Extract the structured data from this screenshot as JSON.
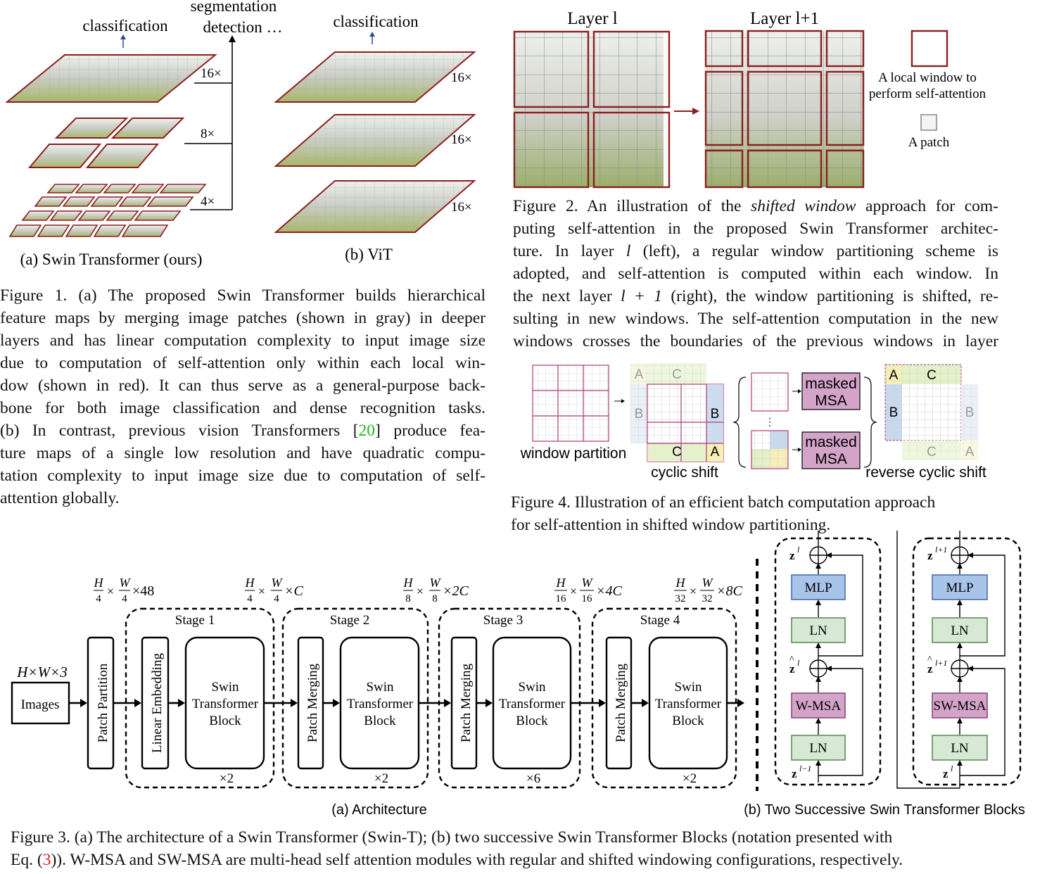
{
  "fig1": {
    "classification_a": "classification",
    "segmentation": "segmentation",
    "detection": "detection …",
    "classification_b": "classification",
    "scale_16": "16×",
    "scale_8": "8×",
    "scale_4": "4×",
    "vit_scale": "16×",
    "sub_a": "(a) Swin Transformer (ours)",
    "sub_b": "(b) ViT",
    "caption_lines": [
      "Figure 1. (a) The proposed Swin Transformer builds hierarchical",
      "feature maps by merging image patches (shown in gray) in deeper",
      "layers and has linear computation complexity to input image size",
      "due to computation of self-attention only within each local win-",
      "dow (shown in red). It can thus serve as a general-purpose back-",
      "bone for both image classification and dense recognition tasks.",
      "(b) In contrast, previous vision Transformers [",
      "20",
      "] produce fea-",
      "ture maps of a single low resolution and have quadratic compu-",
      "tation complexity to input image size due to computation of self-",
      "attention globally."
    ]
  },
  "fig2": {
    "layer_l": "Layer l",
    "layer_l1": "Layer l+1",
    "legend_window": "A local window to",
    "legend_window2": "perform self-attention",
    "legend_patch": "A patch",
    "caption_lines": [
      "Figure 2. An illustration of the ",
      "shifted window",
      " approach for com-",
      "puting self-attention in the proposed Swin Transformer architec-",
      "ture.  In layer ",
      "l",
      " (left), a regular window partitioning scheme is",
      "adopted, and self-attention is computed within each window.  In",
      "the next layer ",
      "l + 1",
      " (right), the window partitioning is shifted, re-",
      "sulting in new windows. The self-attention computation in the new",
      "windows crosses the boundaries of the previous windows in layer"
    ]
  },
  "fig4": {
    "window_partition": "window partition",
    "cyclic_shift": "cyclic shift",
    "reverse_cyclic_shift": "reverse cyclic shift",
    "masked": "masked",
    "msa": "MSA",
    "A": "A",
    "B": "B",
    "C": "C",
    "caption1": "Figure 4. Illustration of an efficient batch computation approach",
    "caption2": "for self-attention in shifted window partitioning."
  },
  "fig3": {
    "input_dims": "H×W×3",
    "images": "Images",
    "patch_partition": "Patch Partition",
    "linear_embedding": "Linear Embedding",
    "patch_merging": "Patch Merging",
    "swin_line1": "Swin",
    "swin_line2": "Transformer",
    "swin_line3": "Block",
    "stages": [
      "Stage 1",
      "Stage 2",
      "Stage 3",
      "Stage 4"
    ],
    "repeats": [
      "×2",
      "×2",
      "×6",
      "×2"
    ],
    "dims": [
      {
        "h": "H",
        "hd": "4",
        "w": "W",
        "wd": "4",
        "c": "×48"
      },
      {
        "h": "H",
        "hd": "4",
        "w": "W",
        "wd": "4",
        "c": "×C"
      },
      {
        "h": "H",
        "hd": "8",
        "w": "W",
        "wd": "8",
        "c": "×2C"
      },
      {
        "h": "H",
        "hd": "16",
        "w": "W",
        "wd": "16",
        "c": "×4C"
      },
      {
        "h": "H",
        "hd": "32",
        "w": "W",
        "wd": "32",
        "c": "×8C"
      }
    ],
    "sub_a": "(a) Architecture",
    "sub_b": "(b) Two Successive Swin Transformer Blocks",
    "mlp": "MLP",
    "ln": "LN",
    "wmsa": "W-MSA",
    "swmsa": "SW-MSA",
    "z_l": "z",
    "sup_l": "l",
    "sup_lm1": "l−1",
    "sup_lp1": "l+1",
    "caption1": "Figure 3. (a) The architecture of a Swin Transformer (Swin-T); (b) two successive Swin Transformer Blocks (notation presented with",
    "caption2a": "Eq. (",
    "caption2ref": "3",
    "caption2b": ")). W-MSA and SW-MSA are multi-head self attention modules with regular and shifted windowing configurations, respectively."
  }
}
